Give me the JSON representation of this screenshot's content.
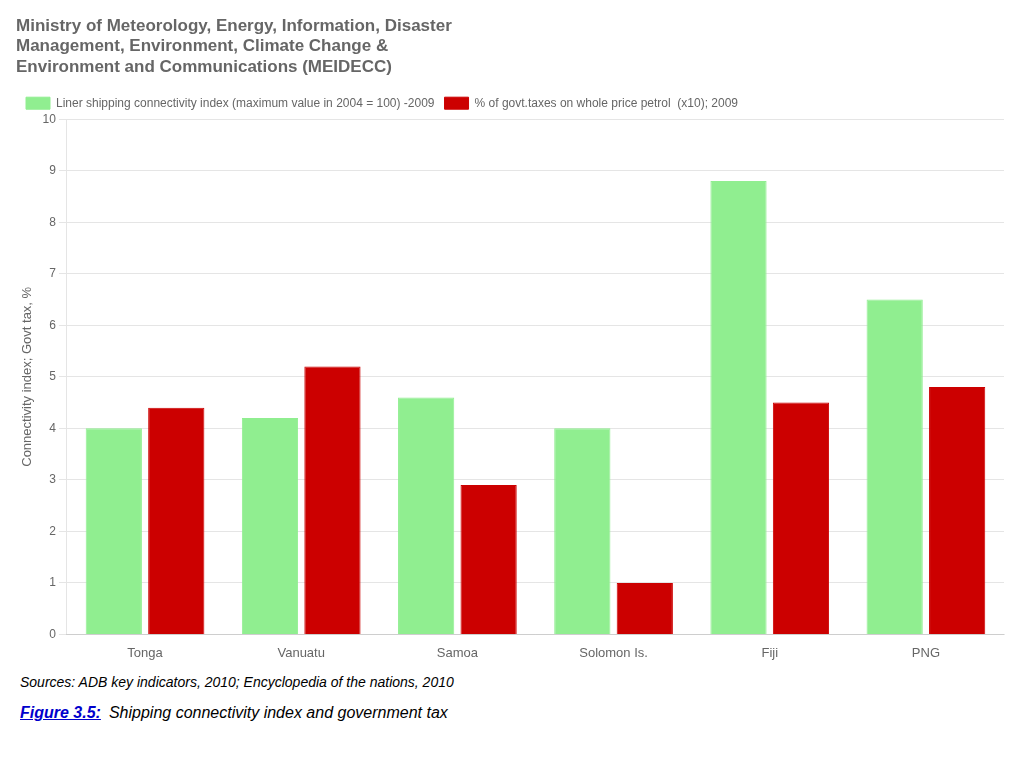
{
  "chart_data": {
    "type": "bar",
    "title": "Ministry of Meteorology, Energy, Information, Disaster\nManagement, Environment, Climate Change &\nEnvironment and Communications (MEIDECC)",
    "categories": [
      "Tonga",
      "Vanuatu",
      "Samoa",
      "Solomon Is.",
      "Fiji",
      "PNG"
    ],
    "series": [
      {
        "name": "Liner shipping connectivity index (maximum value in 2004 = 100) -2009",
        "color": "#90EE90",
        "values": [
          4.0,
          4.2,
          4.6,
          4.0,
          8.8,
          6.5
        ]
      },
      {
        "name": "% of govt.taxes on whole price petrol  (x10); 2009",
        "color": "#CC0000",
        "values": [
          4.4,
          5.2,
          2.9,
          1.0,
          4.5,
          4.8
        ]
      }
    ],
    "ylabel": "Connectivity index; Govt tax, %",
    "ylim": [
      0,
      10
    ],
    "yticks": [
      0,
      1,
      2,
      3,
      4,
      5,
      6,
      7,
      8,
      9,
      10
    ],
    "grid": true,
    "legend": "upper left",
    "annotations": [
      "Sources: ADB key indicators, 2010;  Encyclopedia of the nations, 2010",
      "Figure 3.5:",
      "Shipping connectivity index and government tax"
    ]
  }
}
